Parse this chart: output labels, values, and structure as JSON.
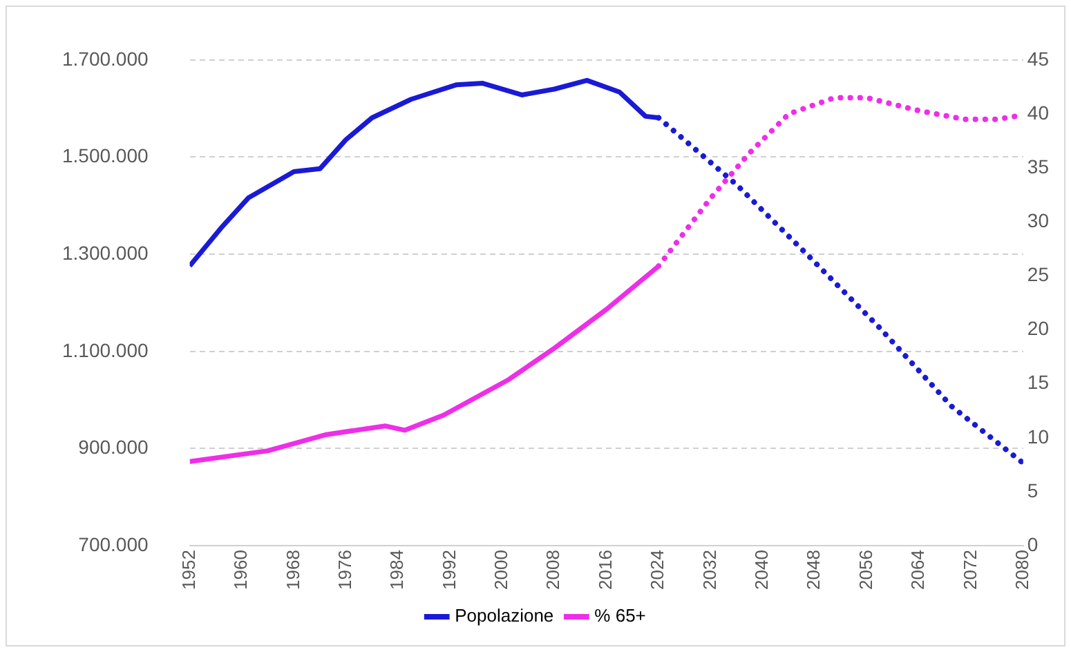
{
  "chart_data": {
    "type": "line",
    "legend": "bottom",
    "grid": "y",
    "marker": "none",
    "xlim": [
      1952,
      2080
    ],
    "xticks": [
      1952,
      1960,
      1968,
      1976,
      1984,
      1992,
      2000,
      2008,
      2016,
      2024,
      2032,
      2040,
      2048,
      2056,
      2064,
      2072,
      2080
    ],
    "ylim": [
      700000,
      1700000
    ],
    "yticks": [
      {
        "value": 700000,
        "label": "700.000"
      },
      {
        "value": 900000,
        "label": "900.000"
      },
      {
        "value": 1100000,
        "label": "1.100.000"
      },
      {
        "value": 1300000,
        "label": "1.300.000"
      },
      {
        "value": 1500000,
        "label": "1.500.000"
      },
      {
        "value": 1700000,
        "label": "1.700.000"
      }
    ],
    "y2lim": [
      0,
      45
    ],
    "y2ticks": [
      0,
      5,
      10,
      15,
      20,
      25,
      30,
      35,
      40,
      45
    ],
    "series": [
      {
        "name": "Popolazione",
        "color": "#1a1ad6",
        "line_style": "solid",
        "x": [
          1952,
          1957,
          1961,
          1968,
          1972,
          1976,
          1980,
          1986,
          1993,
          1997,
          2003,
          2008,
          2013,
          2018,
          2022,
          2024
        ],
        "values": [
          1276000,
          1357000,
          1416000,
          1470000,
          1476000,
          1536000,
          1581000,
          1619000,
          1649000,
          1652000,
          1628000,
          1640000,
          1658000,
          1634000,
          1584000,
          1581000
        ]
      },
      {
        "color": "#1a1ad6",
        "line_style": "dotted",
        "x": [
          2024,
          2036,
          2047,
          2058,
          2069,
          2080
        ],
        "values": [
          1581000,
          1443000,
          1297000,
          1148000,
          987000,
          870000
        ]
      },
      {
        "name": "% 65+",
        "color": "#ee2ee8",
        "line_style": "solid",
        "axis": "y2",
        "x": [
          1952,
          1964,
          1973,
          1982,
          1985,
          1991,
          2001,
          2008,
          2016,
          2024
        ],
        "values": [
          7.8,
          8.8,
          10.3,
          11.1,
          10.7,
          12.1,
          15.4,
          18.3,
          21.9,
          25.9
        ]
      },
      {
        "color": "#ee2ee8",
        "line_style": "dotted",
        "axis": "y2",
        "x": [
          2024,
          2032,
          2038,
          2044,
          2051,
          2056,
          2064,
          2071,
          2076,
          2080
        ],
        "values": [
          25.9,
          32.2,
          36.4,
          40.0,
          41.5,
          41.5,
          40.3,
          39.5,
          39.5,
          39.9
        ]
      }
    ]
  }
}
